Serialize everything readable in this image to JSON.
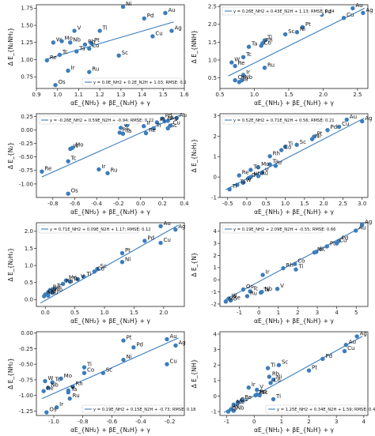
{
  "chart_data": [
    {
      "type": "scatter",
      "ylabel": "Δ E_{N₂NH₂}",
      "xlabel": "αE_{NH₂} + βE_{N₂H} + γ",
      "xlim": [
        0.9,
        1.6
      ],
      "ylim": [
        0.58,
        1.8
      ],
      "xticks": [
        "0.9",
        "1.0",
        "1.1",
        "1.2",
        "1.3",
        "1.4",
        "1.5",
        "1.6"
      ],
      "yticks": [
        "0.75",
        "1.00",
        "1.25",
        "1.50",
        "1.75"
      ],
      "legend": "y = 0.0E_NH2 + 0.2E_N2H + 1.03; RMSE: 0.2",
      "legend_position": "bottom-right",
      "fit": [
        [
          0.95,
          1.01
        ],
        [
          1.55,
          1.55
        ]
      ],
      "points": [
        {
          "label": "Ni",
          "x": 1.31,
          "y": 1.77
        },
        {
          "label": "Au",
          "x": 1.51,
          "y": 1.68
        },
        {
          "label": "Pd",
          "x": 1.41,
          "y": 1.6
        },
        {
          "label": "Ti",
          "x": 1.2,
          "y": 1.42
        },
        {
          "label": "V",
          "x": 1.08,
          "y": 1.42
        },
        {
          "label": "Ag",
          "x": 1.54,
          "y": 1.42
        },
        {
          "label": "Cu",
          "x": 1.45,
          "y": 1.34
        },
        {
          "label": "W",
          "x": 0.98,
          "y": 1.25
        },
        {
          "label": "Mo",
          "x": 1.02,
          "y": 1.27
        },
        {
          "label": "Nb",
          "x": 1.06,
          "y": 1.25
        },
        {
          "label": "Pt",
          "x": 1.16,
          "y": 1.24
        },
        {
          "label": "Rh",
          "x": 1.13,
          "y": 1.22
        },
        {
          "label": "Co",
          "x": 1.15,
          "y": 1.16
        },
        {
          "label": "Ta",
          "x": 1.09,
          "y": 1.12
        },
        {
          "label": "Tc",
          "x": 1.01,
          "y": 1.07
        },
        {
          "label": "Re",
          "x": 0.95,
          "y": 0.99
        },
        {
          "label": "Sc",
          "x": 1.29,
          "y": 1.06
        },
        {
          "label": "Ir",
          "x": 1.05,
          "y": 0.84
        },
        {
          "label": "Ru",
          "x": 1.15,
          "y": 0.82
        },
        {
          "label": "Os",
          "x": 0.99,
          "y": 0.63
        }
      ]
    },
    {
      "type": "scatter",
      "ylabel": "Δ E_{NNH}",
      "xlabel": "αE_{NH₂} + βE_{N₂H} + γ",
      "xlim": [
        0.5,
        2.65
      ],
      "ylim": [
        0.2,
        2.55
      ],
      "xticks": [
        "0.5",
        "1.0",
        "1.5",
        "2.0",
        "2.5"
      ],
      "yticks": [
        "0.5",
        "1.0",
        "1.5",
        "2.0",
        "2.5"
      ],
      "legend": "y = 0.26E_NH2 + 0.43E_N2H + 1.13; RMSE: 0.24",
      "legend_position": "top-left",
      "fit": [
        [
          0.62,
          0.55
        ],
        [
          2.6,
          2.45
        ]
      ],
      "points": [
        {
          "label": "Au",
          "x": 2.43,
          "y": 2.45
        },
        {
          "label": "Ag",
          "x": 2.58,
          "y": 2.32
        },
        {
          "label": "Pd",
          "x": 1.98,
          "y": 2.27
        },
        {
          "label": "Cu",
          "x": 2.3,
          "y": 2.18
        },
        {
          "label": "Pt",
          "x": 1.7,
          "y": 1.92
        },
        {
          "label": "Ni",
          "x": 1.62,
          "y": 1.78
        },
        {
          "label": "Sc",
          "x": 1.45,
          "y": 1.72
        },
        {
          "label": "Ti",
          "x": 1.15,
          "y": 1.55
        },
        {
          "label": "Rh",
          "x": 1.12,
          "y": 1.47
        },
        {
          "label": "Co",
          "x": 1.1,
          "y": 1.4
        },
        {
          "label": "Ta",
          "x": 0.92,
          "y": 1.37
        },
        {
          "label": "Tc",
          "x": 0.84,
          "y": 1.08
        },
        {
          "label": "W",
          "x": 0.67,
          "y": 0.93
        },
        {
          "label": "Re",
          "x": 0.72,
          "y": 0.83
        },
        {
          "label": "Ru",
          "x": 1.15,
          "y": 0.78
        },
        {
          "label": "Ir",
          "x": 0.84,
          "y": 0.58
        },
        {
          "label": "Os",
          "x": 0.72,
          "y": 0.43
        },
        {
          "label": "Nb",
          "x": 0.82,
          "y": 0.43
        },
        {
          "label": "Ta",
          "x": 0.78,
          "y": 0.38
        }
      ]
    },
    {
      "type": "scatter",
      "ylabel": "Δ E_{N₂}",
      "xlabel": "αE_{NH₂} + βE_{N₂H} + γ",
      "xlim": [
        -0.95,
        0.4
      ],
      "ylim": [
        -1.25,
        0.3
      ],
      "xticks": [
        "-0.8",
        "-0.6",
        "-0.4",
        "-0.2",
        "0.0",
        "0.2",
        "0.4"
      ],
      "yticks": [
        "-1.00",
        "-0.75",
        "-0.50",
        "-0.25",
        "0.00",
        "0.25"
      ],
      "legend": "y = -0.26E_NH2 + 0.59E_N2H + -0.94; RMSE: 0.22",
      "legend_position": "top-left",
      "fit": [
        [
          -0.9,
          -0.87
        ],
        [
          0.36,
          0.27
        ]
      ],
      "points": [
        {
          "label": "Au",
          "x": 0.33,
          "y": 0.22
        },
        {
          "label": "Pd",
          "x": 0.2,
          "y": 0.21
        },
        {
          "label": "Ag",
          "x": 0.25,
          "y": 0.17
        },
        {
          "label": "Ni",
          "x": 0.22,
          "y": 0.16
        },
        {
          "label": "Pt",
          "x": 0.15,
          "y": 0.14
        },
        {
          "label": "Co",
          "x": -0.12,
          "y": 0.09
        },
        {
          "label": "Cu",
          "x": 0.27,
          "y": 0.08
        },
        {
          "label": "Ir",
          "x": 0.03,
          "y": 0.07
        },
        {
          "label": "V",
          "x": -0.18,
          "y": 0.04
        },
        {
          "label": "Ti",
          "x": 0.12,
          "y": 0.03
        },
        {
          "label": "Sc",
          "x": 0.25,
          "y": 0.03
        },
        {
          "label": "Ta",
          "x": -0.16,
          "y": -0.07
        },
        {
          "label": "Rh",
          "x": -0.19,
          "y": -0.05
        },
        {
          "label": "Re",
          "x": 0.05,
          "y": -0.06
        },
        {
          "label": "W",
          "x": -0.64,
          "y": -0.35
        },
        {
          "label": "Mo",
          "x": -0.62,
          "y": -0.33
        },
        {
          "label": "Tc",
          "x": -0.66,
          "y": -0.58
        },
        {
          "label": "Re",
          "x": -0.9,
          "y": -0.77
        },
        {
          "label": "Ir",
          "x": -0.38,
          "y": -0.73
        },
        {
          "label": "Ru",
          "x": -0.3,
          "y": -0.8
        },
        {
          "label": "Os",
          "x": -0.66,
          "y": -1.18
        }
      ]
    },
    {
      "type": "scatter",
      "ylabel": "Δ E_{N₂H₂}",
      "xlabel": "αE_{NH₂} + βE_{N₂H} + γ",
      "xlim": [
        -0.7,
        3.15
      ],
      "ylim": [
        -1.0,
        3.1
      ],
      "xticks": [
        "-0.5",
        "0.0",
        "0.5",
        "1.0",
        "1.5",
        "2.0",
        "2.5",
        "3.0"
      ],
      "yticks": [
        "-1",
        "0",
        "1",
        "2",
        "3"
      ],
      "legend": "y = 0.52E_NH2 + 0.71E_N2H + 0.56; RMSE: 0.21",
      "legend_position": "top-left",
      "fit": [
        [
          -0.55,
          -0.62
        ],
        [
          3.05,
          2.88
        ]
      ],
      "points": [
        {
          "label": "Au",
          "x": 2.6,
          "y": 2.81
        },
        {
          "label": "Ag",
          "x": 3.0,
          "y": 2.73
        },
        {
          "label": "Cu",
          "x": 2.4,
          "y": 2.46
        },
        {
          "label": "Pd",
          "x": 2.1,
          "y": 2.3
        },
        {
          "label": "Pt",
          "x": 1.75,
          "y": 1.98
        },
        {
          "label": "Ni",
          "x": 1.7,
          "y": 1.86
        },
        {
          "label": "Sc",
          "x": 1.3,
          "y": 1.58
        },
        {
          "label": "Ti",
          "x": 1.0,
          "y": 1.48
        },
        {
          "label": "Co",
          "x": 0.9,
          "y": 1.32
        },
        {
          "label": "Rh",
          "x": 0.6,
          "y": 1.02
        },
        {
          "label": "Ta",
          "x": 0.6,
          "y": 0.62
        },
        {
          "label": "Ir",
          "x": 0.75,
          "y": 0.55
        },
        {
          "label": "Mo",
          "x": 0.3,
          "y": 0.48
        },
        {
          "label": "Tc",
          "x": 0.1,
          "y": 0.35
        },
        {
          "label": "V",
          "x": 0.4,
          "y": 0.2
        },
        {
          "label": "Re",
          "x": -0.2,
          "y": 0.08
        },
        {
          "label": "Os",
          "x": 0.05,
          "y": -0.05
        },
        {
          "label": "Nb",
          "x": 0.1,
          "y": 0.0
        },
        {
          "label": "Ru",
          "x": 0.3,
          "y": 0.05
        },
        {
          "label": "W",
          "x": -0.1,
          "y": -0.28
        },
        {
          "label": "Ta",
          "x": -0.25,
          "y": -0.38
        },
        {
          "label": "Ti",
          "x": -0.45,
          "y": -0.6
        }
      ]
    },
    {
      "type": "scatter",
      "ylabel": "Δ E_{N₂H₃}",
      "xlabel": "αE_{NH₂} + βE_{N₂H} + γ",
      "xlim": [
        -0.15,
        2.35
      ],
      "ylim": [
        -0.2,
        2.25
      ],
      "xticks": [
        "0.0",
        "0.5",
        "1.0",
        "1.5",
        "2.0"
      ],
      "yticks": [
        "0.0",
        "0.5",
        "1.0",
        "1.5",
        "2.0"
      ],
      "legend": "y = 0.71E_NH2 + 0.09E_N2H + 1.17; RMSE: 0.12",
      "legend_position": "top-left",
      "fit": [
        [
          -0.08,
          -0.1
        ],
        [
          2.25,
          2.18
        ]
      ],
      "points": [
        {
          "label": "Au",
          "x": 1.95,
          "y": 2.15
        },
        {
          "label": "Ag",
          "x": 2.2,
          "y": 2.05
        },
        {
          "label": "Pd",
          "x": 1.68,
          "y": 1.72
        },
        {
          "label": "Cu",
          "x": 1.95,
          "y": 1.66
        },
        {
          "label": "Pt",
          "x": 1.3,
          "y": 1.36
        },
        {
          "label": "Ni",
          "x": 1.3,
          "y": 1.1
        },
        {
          "label": "Sc",
          "x": 0.88,
          "y": 0.9
        },
        {
          "label": "Co",
          "x": 0.83,
          "y": 0.82
        },
        {
          "label": "Ti",
          "x": 0.65,
          "y": 0.67
        },
        {
          "label": "V",
          "x": 0.55,
          "y": 0.6
        },
        {
          "label": "Mo",
          "x": 0.35,
          "y": 0.56
        },
        {
          "label": "Ta",
          "x": 0.42,
          "y": 0.52
        },
        {
          "label": "Rh",
          "x": 0.3,
          "y": 0.46
        },
        {
          "label": "Re",
          "x": 0.08,
          "y": 0.28
        },
        {
          "label": "Tc",
          "x": 0.15,
          "y": 0.32
        },
        {
          "label": "W",
          "x": 0.05,
          "y": 0.22
        },
        {
          "label": "Nb",
          "x": 0.12,
          "y": 0.2
        },
        {
          "label": "Os",
          "x": 0.0,
          "y": 0.15
        },
        {
          "label": "Ir",
          "x": -0.02,
          "y": 0.1
        },
        {
          "label": "Ru",
          "x": 0.05,
          "y": 0.12
        }
      ]
    },
    {
      "type": "scatter",
      "ylabel": "Δ E_{N}",
      "xlabel": "αE_{NH₂} + βE_{N₂H} + γ",
      "xlim": [
        -2.0,
        5.6
      ],
      "ylim": [
        -2.2,
        4.7
      ],
      "xticks": [
        "-1",
        "0",
        "1",
        "2",
        "3",
        "4",
        "5"
      ],
      "yticks": [
        "-2",
        "-1",
        "0",
        "1",
        "2",
        "3",
        "4"
      ],
      "legend": "y = 0.19E_NH2 + 2.09E_N2H + -0.55; RMSE: 0.66",
      "legend_position": "top-left",
      "fit": [
        [
          -1.75,
          -1.65
        ],
        [
          5.4,
          4.45
        ]
      ],
      "points": [
        {
          "label": "Ag",
          "x": 5.3,
          "y": 4.55
        },
        {
          "label": "Au",
          "x": 4.98,
          "y": 4.05
        },
        {
          "label": "Pd",
          "x": 4.1,
          "y": 3.2
        },
        {
          "label": "Cu",
          "x": 4.0,
          "y": 3.0
        },
        {
          "label": "Pt",
          "x": 3.5,
          "y": 2.75
        },
        {
          "label": "Sc",
          "x": 2.95,
          "y": 2.3
        },
        {
          "label": "Ni",
          "x": 2.85,
          "y": 2.25
        },
        {
          "label": "Co",
          "x": 1.85,
          "y": 1.3
        },
        {
          "label": "Rh",
          "x": 1.25,
          "y": 0.95
        },
        {
          "label": "Ti",
          "x": 1.9,
          "y": 0.85
        },
        {
          "label": "Ir",
          "x": 0.2,
          "y": 0.4
        },
        {
          "label": "V",
          "x": 0.95,
          "y": -0.75
        },
        {
          "label": "Os",
          "x": -0.8,
          "y": -0.8
        },
        {
          "label": "Tc",
          "x": -0.45,
          "y": -0.95
        },
        {
          "label": "Ta",
          "x": 0.1,
          "y": -1.05
        },
        {
          "label": "Nb",
          "x": 0.15,
          "y": -1.0
        },
        {
          "label": "Ru",
          "x": -0.6,
          "y": -1.35
        },
        {
          "label": "W",
          "x": -1.55,
          "y": -1.55
        },
        {
          "label": "Re",
          "x": -1.45,
          "y": -1.7
        },
        {
          "label": "Mo",
          "x": -1.7,
          "y": -1.8
        }
      ]
    },
    {
      "type": "scatter",
      "ylabel": "Δ E_{NH₂}",
      "xlabel": "αE_{NH₂} + βE_{N₂H} + γ",
      "xlim": [
        -1.12,
        -0.1
      ],
      "ylim": [
        -1.32,
        0.02
      ],
      "xticks": [
        "-1.0",
        "-0.8",
        "-0.6",
        "-0.4",
        "-0.2"
      ],
      "yticks": [
        "-1.25",
        "-1.00",
        "-0.75",
        "-0.50",
        "-0.25",
        "0.00"
      ],
      "legend": "y = 0.19E_NH2 + 0.15E_N2H + -0.73; RMSE: 0.18",
      "legend_position": "bottom-right",
      "fit": [
        [
          -1.08,
          -1.05
        ],
        [
          -0.14,
          -0.08
        ]
      ],
      "points": [
        {
          "label": "Pt",
          "x": -0.52,
          "y": -0.12
        },
        {
          "label": "Au",
          "x": -0.22,
          "y": -0.1
        },
        {
          "label": "Pd",
          "x": -0.45,
          "y": -0.23
        },
        {
          "label": "Ag",
          "x": -0.16,
          "y": -0.2
        },
        {
          "label": "Ni",
          "x": -0.52,
          "y": -0.43
        },
        {
          "label": "Cu",
          "x": -0.22,
          "y": -0.5
        },
        {
          "label": "Ti",
          "x": -0.79,
          "y": -0.55
        },
        {
          "label": "Co",
          "x": -0.79,
          "y": -0.64
        },
        {
          "label": "Sc",
          "x": -0.66,
          "y": -0.64
        },
        {
          "label": "Mo",
          "x": -0.95,
          "y": -0.73
        },
        {
          "label": "W",
          "x": -1.06,
          "y": -0.77
        },
        {
          "label": "Tc",
          "x": -1.01,
          "y": -0.79
        },
        {
          "label": "Nb",
          "x": -1.04,
          "y": -0.88
        },
        {
          "label": "Rh",
          "x": -0.87,
          "y": -0.86
        },
        {
          "label": "Re",
          "x": -1.07,
          "y": -0.93
        },
        {
          "label": "V",
          "x": -0.9,
          "y": -0.92
        },
        {
          "label": "Ta",
          "x": -0.9,
          "y": -0.95
        },
        {
          "label": "Ru",
          "x": -0.89,
          "y": -1.05
        },
        {
          "label": "Ir",
          "x": -0.98,
          "y": -1.19
        },
        {
          "label": "Os",
          "x": -1.05,
          "y": -1.27
        }
      ]
    },
    {
      "type": "scatter",
      "ylabel": "Δ E_{NH}",
      "xlabel": "αE_{NH₂} + βE_{N₂H} + γ",
      "xlim": [
        -1.25,
        4.15
      ],
      "ylim": [
        -1.25,
        4.15
      ],
      "xticks": [
        "-1",
        "0",
        "1",
        "2",
        "3",
        "4"
      ],
      "yticks": [
        "-1",
        "0",
        "1",
        "2",
        "3",
        "4"
      ],
      "legend": "y = 1.25E_NH2 + 0.34E_N2H + 1.59; RMSE: 0.44",
      "legend_position": "bottom-right",
      "fit": [
        [
          -1.1,
          -1.05
        ],
        [
          3.95,
          3.85
        ]
      ],
      "points": [
        {
          "label": "Ag",
          "x": 3.75,
          "y": 3.85
        },
        {
          "label": "Au",
          "x": 3.35,
          "y": 3.3
        },
        {
          "label": "Cu",
          "x": 3.3,
          "y": 2.9
        },
        {
          "label": "Pd",
          "x": 2.5,
          "y": 2.4
        },
        {
          "label": "Pt",
          "x": 2.0,
          "y": 1.65
        },
        {
          "label": "Sc",
          "x": 0.9,
          "y": 2.0
        },
        {
          "label": "Ti",
          "x": 0.5,
          "y": 1.8
        },
        {
          "label": "Rh",
          "x": 0.55,
          "y": 1.25
        },
        {
          "label": "Ni",
          "x": 0.7,
          "y": 1.05
        },
        {
          "label": "Co",
          "x": 0.6,
          "y": 0.85
        },
        {
          "label": "Ir",
          "x": -0.2,
          "y": 0.55
        },
        {
          "label": "V",
          "x": 0.1,
          "y": 0.4
        },
        {
          "label": "Ru",
          "x": 0.1,
          "y": 0.1
        },
        {
          "label": "Tc",
          "x": 0.2,
          "y": 0.05
        },
        {
          "label": "Ta",
          "x": 0.05,
          "y": 0.05
        },
        {
          "label": "Ti",
          "x": 0.7,
          "y": -0.2
        },
        {
          "label": "Re",
          "x": -0.45,
          "y": -0.25
        },
        {
          "label": "Os",
          "x": -0.6,
          "y": -0.4
        },
        {
          "label": "Mo",
          "x": -0.75,
          "y": -0.55
        },
        {
          "label": "W",
          "x": -0.85,
          "y": -0.85
        },
        {
          "label": "Nb",
          "x": -0.75,
          "y": -0.95
        },
        {
          "label": "Ta",
          "x": -0.95,
          "y": -1.0
        }
      ]
    }
  ],
  "colors": {
    "point": "#3b7dbd",
    "fit": "#3b7dbd",
    "axis": "#222222"
  }
}
